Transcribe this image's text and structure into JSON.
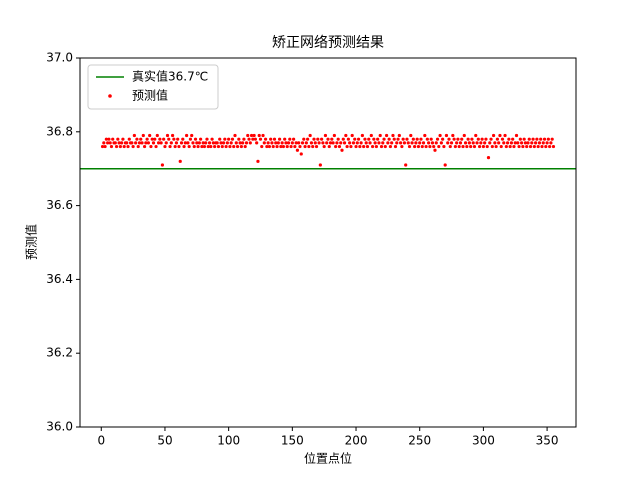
{
  "chart_data": {
    "type": "scatter",
    "title": "矫正网络预测结果",
    "xlabel": "位置点位",
    "ylabel": "预测值",
    "xlim": [
      -16.7,
      372.7
    ],
    "ylim": [
      36.0,
      37.0
    ],
    "xticks": [
      0,
      50,
      100,
      150,
      200,
      250,
      300,
      350
    ],
    "yticks": [
      {
        "value": 36.0,
        "label": "36.0"
      },
      36.2,
      36.4,
      36.6,
      36.8,
      {
        "value": 37.0,
        "label": "37.0"
      }
    ],
    "legend": "upper left",
    "grid": false,
    "series": [
      {
        "name": "真实值36.7℃",
        "type": "hline",
        "color": "green",
        "value": 36.7
      },
      {
        "name": "预测值",
        "type": "scatter",
        "color": "red",
        "x": [
          1,
          2,
          3,
          4,
          5,
          6,
          7,
          8,
          9,
          10,
          11,
          12,
          13,
          14,
          15,
          16,
          17,
          18,
          19,
          20,
          21,
          22,
          23,
          24,
          25,
          26,
          27,
          28,
          29,
          30,
          31,
          32,
          33,
          34,
          35,
          36,
          37,
          38,
          39,
          40,
          41,
          42,
          43,
          44,
          45,
          46,
          47,
          48,
          49,
          50,
          51,
          52,
          53,
          54,
          55,
          56,
          57,
          58,
          59,
          60,
          61,
          62,
          63,
          64,
          65,
          66,
          67,
          68,
          69,
          70,
          71,
          72,
          73,
          74,
          75,
          76,
          77,
          78,
          79,
          80,
          81,
          82,
          83,
          84,
          85,
          86,
          87,
          88,
          89,
          90,
          91,
          92,
          93,
          94,
          95,
          96,
          97,
          98,
          99,
          100,
          101,
          102,
          103,
          104,
          105,
          106,
          107,
          108,
          109,
          110,
          111,
          112,
          113,
          114,
          115,
          116,
          117,
          118,
          119,
          120,
          121,
          122,
          123,
          124,
          125,
          126,
          127,
          128,
          129,
          130,
          131,
          132,
          133,
          134,
          135,
          136,
          137,
          138,
          139,
          140,
          141,
          142,
          143,
          144,
          145,
          146,
          147,
          148,
          149,
          150,
          151,
          152,
          153,
          154,
          155,
          156,
          157,
          158,
          159,
          160,
          161,
          162,
          163,
          164,
          165,
          166,
          167,
          168,
          169,
          170,
          171,
          172,
          173,
          174,
          175,
          176,
          177,
          178,
          179,
          180,
          181,
          182,
          183,
          184,
          185,
          186,
          187,
          188,
          189,
          190,
          191,
          192,
          193,
          194,
          195,
          196,
          197,
          198,
          199,
          200,
          201,
          202,
          203,
          204,
          205,
          206,
          207,
          208,
          209,
          210,
          211,
          212,
          213,
          214,
          215,
          216,
          217,
          218,
          219,
          220,
          221,
          222,
          223,
          224,
          225,
          226,
          227,
          228,
          229,
          230,
          231,
          232,
          233,
          234,
          235,
          236,
          237,
          238,
          239,
          240,
          241,
          242,
          243,
          244,
          245,
          246,
          247,
          248,
          249,
          250,
          251,
          252,
          253,
          254,
          255,
          256,
          257,
          258,
          259,
          260,
          261,
          262,
          263,
          264,
          265,
          266,
          267,
          268,
          269,
          270,
          271,
          272,
          273,
          274,
          275,
          276,
          277,
          278,
          279,
          280,
          281,
          282,
          283,
          284,
          285,
          286,
          287,
          288,
          289,
          290,
          291,
          292,
          293,
          294,
          295,
          296,
          297,
          298,
          299,
          300,
          301,
          302,
          303,
          304,
          305,
          306,
          307,
          308,
          309,
          310,
          311,
          312,
          313,
          314,
          315,
          316,
          317,
          318,
          319,
          320,
          321,
          322,
          323,
          324,
          325,
          326,
          327,
          328,
          329,
          330,
          331,
          332,
          333,
          334,
          335,
          336,
          337,
          338,
          339,
          340,
          341,
          342,
          343,
          344,
          345,
          346,
          347,
          348,
          349,
          350,
          351,
          352,
          353,
          354,
          355
        ],
        "values": [
          36.76,
          36.77,
          36.76,
          36.78,
          36.77,
          36.78,
          36.77,
          36.76,
          36.78,
          36.77,
          36.77,
          36.76,
          36.78,
          36.77,
          36.76,
          36.77,
          36.78,
          36.76,
          36.77,
          36.77,
          36.76,
          36.78,
          36.77,
          36.77,
          36.76,
          36.79,
          36.77,
          36.78,
          36.76,
          36.77,
          36.78,
          36.77,
          36.79,
          36.76,
          36.77,
          36.78,
          36.77,
          36.79,
          36.76,
          36.78,
          36.77,
          36.78,
          36.76,
          36.79,
          36.77,
          36.78,
          36.77,
          36.71,
          36.78,
          36.76,
          36.77,
          36.79,
          36.78,
          36.76,
          36.77,
          36.79,
          36.78,
          36.76,
          36.77,
          36.78,
          36.76,
          36.72,
          36.77,
          36.78,
          36.76,
          36.77,
          36.79,
          36.77,
          36.76,
          36.78,
          36.79,
          36.77,
          36.76,
          36.78,
          36.77,
          36.76,
          36.77,
          36.78,
          36.76,
          36.77,
          36.76,
          36.77,
          36.78,
          36.76,
          36.77,
          36.76,
          36.78,
          36.77,
          36.76,
          36.77,
          36.77,
          36.76,
          36.78,
          36.77,
          36.76,
          36.77,
          36.78,
          36.76,
          36.77,
          36.78,
          36.76,
          36.77,
          36.78,
          36.76,
          36.79,
          36.77,
          36.76,
          36.78,
          36.77,
          36.76,
          36.77,
          36.78,
          36.76,
          36.77,
          36.79,
          36.78,
          36.77,
          36.79,
          36.78,
          36.79,
          36.78,
          36.77,
          36.72,
          36.79,
          36.78,
          36.76,
          36.79,
          36.77,
          36.78,
          36.76,
          36.77,
          36.76,
          36.78,
          36.77,
          36.76,
          36.78,
          36.77,
          36.76,
          36.77,
          36.78,
          36.76,
          36.77,
          36.76,
          36.78,
          36.77,
          36.76,
          36.77,
          36.78,
          36.76,
          36.77,
          36.78,
          36.76,
          36.77,
          36.75,
          36.77,
          36.76,
          36.74,
          36.77,
          36.78,
          36.76,
          36.77,
          36.78,
          36.76,
          36.79,
          36.77,
          36.76,
          36.78,
          36.77,
          36.76,
          36.78,
          36.77,
          36.71,
          36.78,
          36.77,
          36.76,
          36.79,
          36.77,
          36.78,
          36.76,
          36.77,
          36.78,
          36.77,
          36.79,
          36.76,
          36.77,
          36.78,
          36.76,
          36.77,
          36.75,
          36.78,
          36.77,
          36.79,
          36.76,
          36.78,
          36.77,
          36.76,
          36.79,
          36.77,
          36.78,
          36.76,
          36.77,
          36.78,
          36.76,
          36.77,
          36.79,
          36.76,
          36.78,
          36.77,
          36.76,
          36.78,
          36.77,
          36.79,
          36.76,
          36.78,
          36.77,
          36.76,
          36.78,
          36.77,
          36.79,
          36.76,
          36.77,
          36.78,
          36.76,
          36.79,
          36.77,
          36.78,
          36.76,
          36.77,
          36.79,
          36.78,
          36.76,
          36.77,
          36.78,
          36.79,
          36.77,
          36.76,
          36.78,
          36.77,
          36.71,
          36.78,
          36.77,
          36.76,
          36.79,
          36.77,
          36.78,
          36.76,
          36.77,
          36.78,
          36.76,
          36.77,
          36.78,
          36.76,
          36.77,
          36.79,
          36.76,
          36.78,
          36.77,
          36.76,
          36.78,
          36.77,
          36.76,
          36.75,
          36.77,
          36.78,
          36.76,
          36.79,
          36.77,
          36.78,
          36.76,
          36.71,
          36.79,
          36.77,
          36.78,
          36.76,
          36.77,
          36.79,
          36.78,
          36.76,
          36.77,
          36.78,
          36.76,
          36.77,
          36.78,
          36.76,
          36.79,
          36.77,
          36.76,
          36.78,
          36.77,
          36.76,
          36.78,
          36.77,
          36.76,
          36.79,
          36.77,
          36.78,
          36.76,
          36.77,
          36.78,
          36.76,
          36.77,
          36.78,
          36.76,
          36.73,
          36.77,
          36.78,
          36.76,
          36.79,
          36.77,
          36.76,
          36.78,
          36.77,
          36.79,
          36.76,
          36.78,
          36.77,
          36.79,
          36.76,
          36.77,
          36.78,
          36.76,
          36.77,
          36.78,
          36.76,
          36.77,
          36.79,
          36.77,
          36.76,
          36.78,
          36.77,
          36.76,
          36.78,
          36.77,
          36.76,
          36.77,
          36.78,
          36.76,
          36.77,
          36.78,
          36.76,
          36.77,
          36.78,
          36.76,
          36.77,
          36.78,
          36.76,
          36.77,
          36.78,
          36.76,
          36.77,
          36.78,
          36.76,
          36.77,
          36.78,
          36.76
        ]
      }
    ]
  }
}
